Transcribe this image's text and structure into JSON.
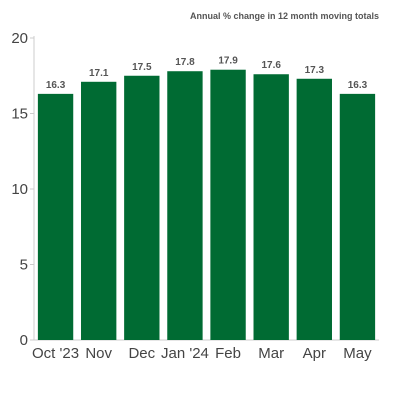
{
  "chart_data": {
    "type": "bar",
    "annotation": "Annual % change in 12 month moving totals",
    "categories": [
      "Oct '23",
      "Nov",
      "Dec",
      "Jan '24",
      "Feb",
      "Mar",
      "Apr",
      "May"
    ],
    "values": [
      16.3,
      17.1,
      17.5,
      17.8,
      17.9,
      17.6,
      17.3,
      16.3
    ],
    "data_labels": [
      "16.3",
      "17.1",
      "17.5",
      "17.8",
      "17.9",
      "17.6",
      "17.3",
      "16.3"
    ],
    "y_ticks": [
      0,
      5,
      10,
      15,
      20
    ],
    "ylim": [
      0,
      20
    ],
    "title": "",
    "xlabel": "",
    "ylabel": "",
    "grid": false,
    "legend": "none",
    "bar_color": "#006b33",
    "axis_color": "#cccccc"
  }
}
